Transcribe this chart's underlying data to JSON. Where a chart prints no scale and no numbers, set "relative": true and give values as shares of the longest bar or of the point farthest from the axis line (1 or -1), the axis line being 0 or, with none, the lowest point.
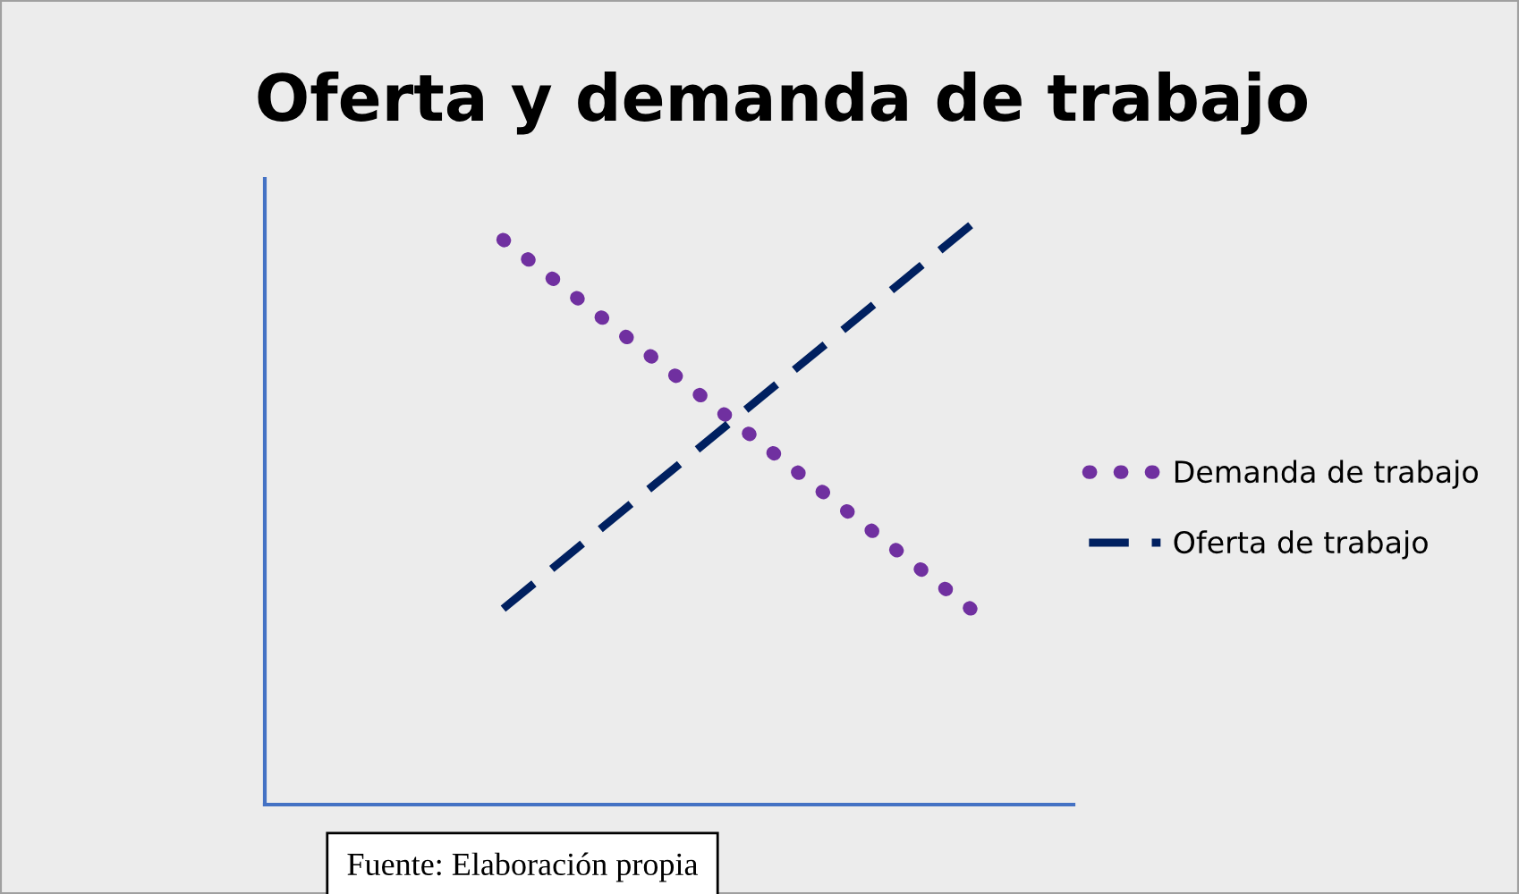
{
  "chart_data": {
    "type": "line",
    "title": "Oferta y demanda de trabajo",
    "relative": true,
    "categories": [
      null,
      null
    ],
    "series": [
      {
        "name": "Demanda de trabajo",
        "color": "#7030a0",
        "values": [
          0.975,
          0.338
        ],
        "line_style": "dotted"
      },
      {
        "name": "Oferta de trabajo",
        "color": "#002060",
        "values": [
          0.338,
          1.0
        ],
        "line_style": "dashed"
      }
    ],
    "legend": "right",
    "tick_labels": false,
    "annotations": [
      "Fuente: Elaboración propia"
    ]
  }
}
